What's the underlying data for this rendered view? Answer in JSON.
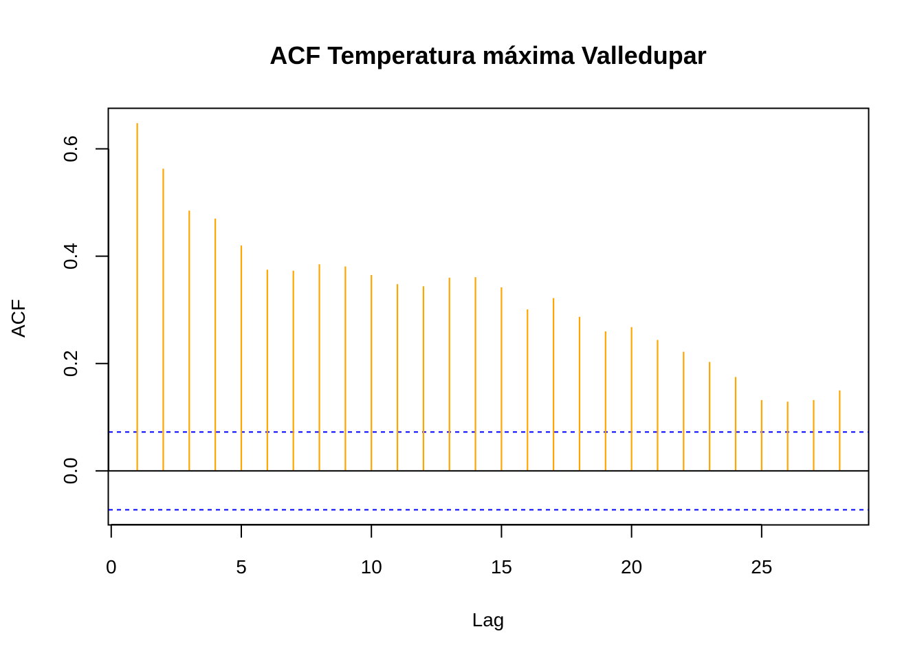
{
  "chart_data": {
    "type": "bar",
    "subtype": "acf-spike",
    "title": "ACF Temperatura máxima Valledupar",
    "xlabel": "Lag",
    "ylabel": "ACF",
    "xlim": [
      -0.1,
      29.1
    ],
    "ylim": [
      -0.1,
      0.675
    ],
    "x_ticks": [
      0,
      5,
      10,
      15,
      20,
      25
    ],
    "y_ticks": [
      0.0,
      0.2,
      0.4,
      0.6
    ],
    "x_tick_labels": [
      "0",
      "5",
      "10",
      "15",
      "20",
      "25"
    ],
    "y_tick_labels": [
      "0.0",
      "0.2",
      "0.4",
      "0.6"
    ],
    "lags": [
      1,
      2,
      3,
      4,
      5,
      6,
      7,
      8,
      9,
      10,
      11,
      12,
      13,
      14,
      15,
      16,
      17,
      18,
      19,
      20,
      21,
      22,
      23,
      24,
      25,
      26,
      27,
      28
    ],
    "values": [
      0.648,
      0.563,
      0.485,
      0.47,
      0.42,
      0.375,
      0.373,
      0.385,
      0.381,
      0.365,
      0.348,
      0.344,
      0.36,
      0.361,
      0.342,
      0.301,
      0.322,
      0.287,
      0.26,
      0.268,
      0.244,
      0.222,
      0.203,
      0.175,
      0.132,
      0.129,
      0.132,
      0.15
    ],
    "confidence_bound": 0.0725,
    "colors": {
      "spikes": "#ffa500",
      "confidence": "#0000ff",
      "zero_line": "#000000",
      "axes": "#000000"
    },
    "grid": false,
    "legend": "none"
  }
}
